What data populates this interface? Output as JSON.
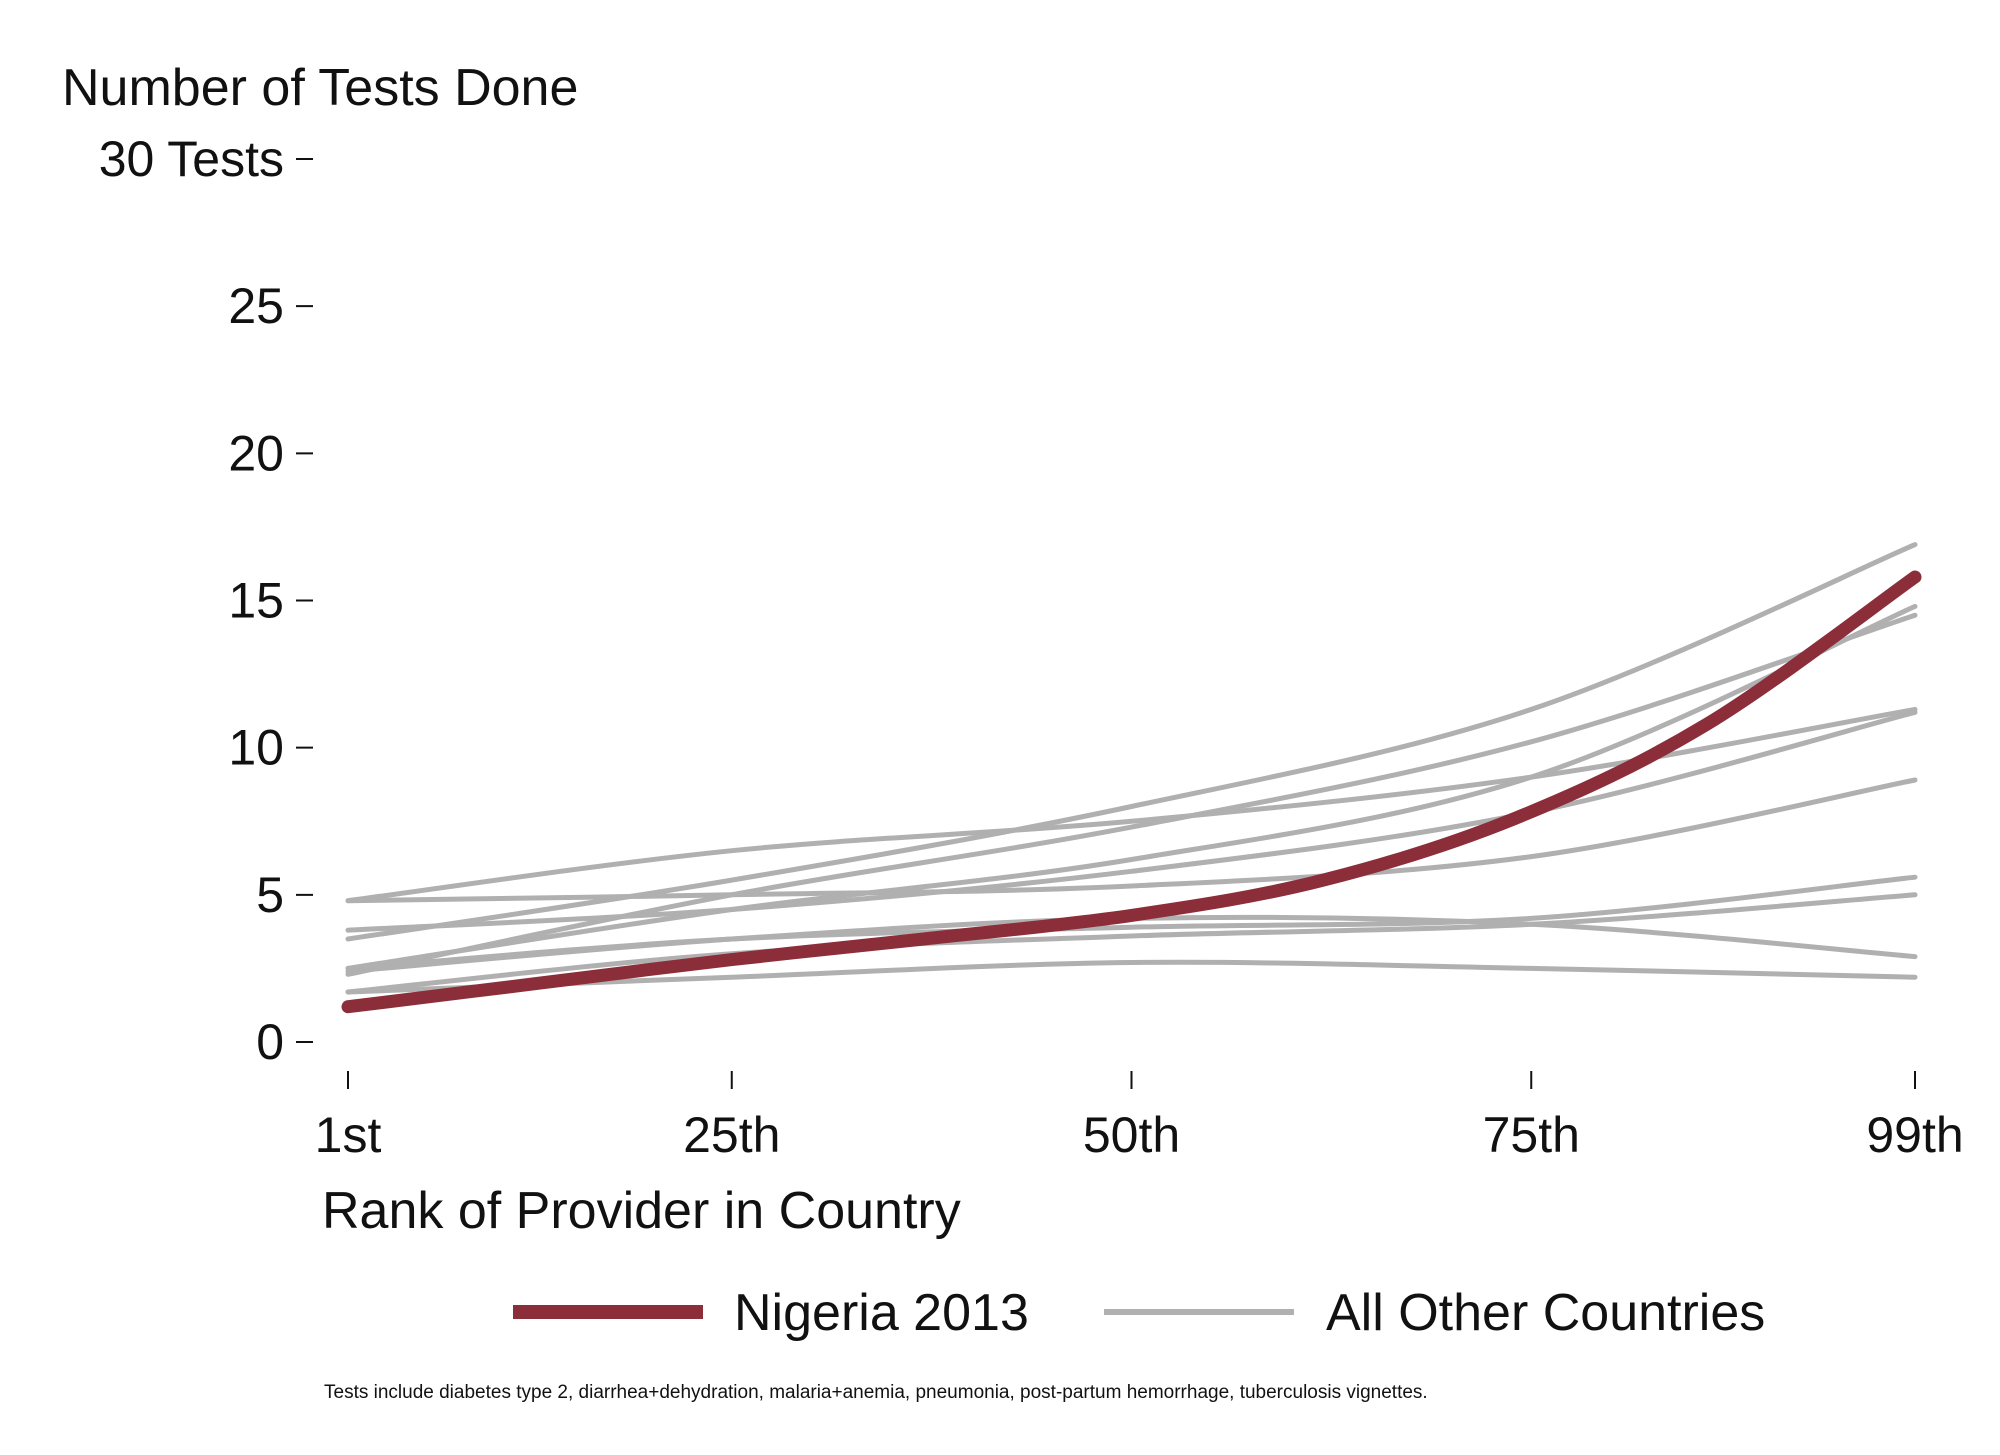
{
  "chart_data": {
    "type": "line",
    "title": "",
    "ylabel": "Number of Tests Done",
    "xlabel": "Rank of Provider in Country",
    "y_ticks": [
      {
        "value": 0,
        "label": "0"
      },
      {
        "value": 5,
        "label": "5"
      },
      {
        "value": 10,
        "label": "10"
      },
      {
        "value": 15,
        "label": "15"
      },
      {
        "value": 20,
        "label": "20"
      },
      {
        "value": 25,
        "label": "25"
      },
      {
        "value": 30,
        "label": "30 Tests"
      }
    ],
    "x_ticks": [
      {
        "value": 1,
        "label": "1st"
      },
      {
        "value": 25,
        "label": "25th"
      },
      {
        "value": 50,
        "label": "50th"
      },
      {
        "value": 75,
        "label": "75th"
      },
      {
        "value": 99,
        "label": "99th"
      }
    ],
    "xlim": [
      1,
      99
    ],
    "ylim": [
      0,
      30
    ],
    "grid": false,
    "legend_position": "bottom",
    "legend": [
      {
        "label": "Nigeria 2013",
        "color": "#8B2E3A"
      },
      {
        "label": "All Other Countries",
        "color": "#b0b0b0"
      }
    ],
    "note": "Tests include diabetes type 2, diarrhea+dehydration, malaria+anemia, pneumonia, post-partum hemorrhage, tuberculosis vignettes.",
    "highlight_series": {
      "name": "Nigeria 2013",
      "color": "#8B2E3A",
      "x": [
        1,
        13,
        25,
        37,
        50,
        62,
        74,
        86,
        99
      ],
      "y": [
        1.2,
        2.0,
        2.8,
        3.5,
        4.3,
        5.5,
        7.6,
        10.8,
        15.8
      ]
    },
    "series": [
      {
        "color": "#b0b0b0",
        "x": [
          1,
          25,
          50,
          75,
          99
        ],
        "y": [
          2.3,
          5.0,
          7.3,
          10.2,
          14.5
        ]
      },
      {
        "color": "#b0b0b0",
        "x": [
          1,
          25,
          50,
          75,
          99
        ],
        "y": [
          3.5,
          5.5,
          8.0,
          11.3,
          16.9
        ]
      },
      {
        "color": "#b0b0b0",
        "x": [
          1,
          25,
          50,
          75,
          99
        ],
        "y": [
          4.8,
          6.5,
          7.5,
          9.0,
          11.3
        ]
      },
      {
        "color": "#b0b0b0",
        "x": [
          1,
          25,
          50,
          75,
          99
        ],
        "y": [
          2.5,
          4.5,
          6.2,
          9.0,
          14.8
        ]
      },
      {
        "color": "#b0b0b0",
        "x": [
          1,
          25,
          50,
          75,
          99
        ],
        "y": [
          3.8,
          4.5,
          5.8,
          7.8,
          11.2
        ]
      },
      {
        "color": "#b0b0b0",
        "x": [
          1,
          25,
          50,
          75,
          99
        ],
        "y": [
          4.8,
          5.0,
          5.3,
          6.3,
          8.9
        ]
      },
      {
        "color": "#b0b0b0",
        "x": [
          1,
          25,
          50,
          75,
          99
        ],
        "y": [
          2.5,
          3.5,
          3.9,
          4.2,
          5.6
        ]
      },
      {
        "color": "#b0b0b0",
        "x": [
          1,
          25,
          50,
          75,
          99
        ],
        "y": [
          2.4,
          3.5,
          4.2,
          4.0,
          2.9
        ]
      },
      {
        "color": "#b0b0b0",
        "x": [
          1,
          25,
          50,
          75,
          99
        ],
        "y": [
          1.7,
          2.2,
          2.7,
          2.5,
          2.2
        ]
      },
      {
        "color": "#b0b0b0",
        "x": [
          1,
          25,
          50,
          75,
          99
        ],
        "y": [
          1.7,
          3.0,
          3.6,
          4.0,
          5.0
        ]
      }
    ]
  }
}
